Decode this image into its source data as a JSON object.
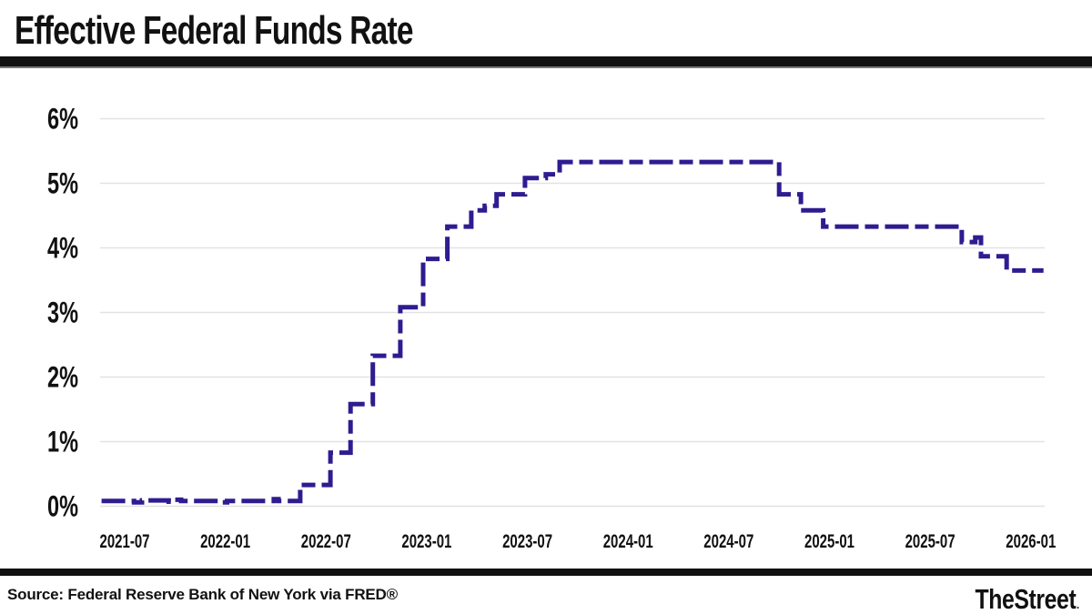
{
  "header": {
    "title": "Effective Federal Funds Rate"
  },
  "footer": {
    "source": "Source: Federal Reserve Bank of New York via FRED®",
    "brand": "TheStreet",
    "brand_suffix": "."
  },
  "colors": {
    "line": "#2e1c90",
    "grid": "#e2e2e2",
    "divider_bar": "#111111",
    "text": "#111111"
  },
  "chart_data": {
    "type": "line",
    "title": "Effective Federal Funds Rate",
    "xlabel": "",
    "ylabel": "",
    "step": true,
    "line_style": "dashed",
    "legend": "none",
    "grid": "horizontal",
    "ylim": [
      0,
      6
    ],
    "y_ticks": [
      "0%",
      "1%",
      "2%",
      "3%",
      "4%",
      "5%",
      "6%"
    ],
    "x_ticks": [
      "2021-07",
      "2022-01",
      "2022-07",
      "2023-01",
      "2023-07",
      "2024-01",
      "2024-07",
      "2025-01",
      "2025-07",
      "2026-01"
    ],
    "series": [
      {
        "name": "Effective Federal Funds Rate (%)",
        "points": [
          [
            "2021-05-20",
            0.08
          ],
          [
            "2021-07-18",
            0.06
          ],
          [
            "2021-08-02",
            0.09
          ],
          [
            "2021-09-20",
            0.07
          ],
          [
            "2021-10-01",
            0.1
          ],
          [
            "2021-10-12",
            0.08
          ],
          [
            "2021-12-24",
            0.06
          ],
          [
            "2022-01-04",
            0.08
          ],
          [
            "2022-03-28",
            0.11
          ],
          [
            "2022-04-06",
            0.08
          ],
          [
            "2022-05-15",
            0.33
          ],
          [
            "2022-07-09",
            0.83
          ],
          [
            "2022-08-15",
            1.58
          ],
          [
            "2022-09-25",
            2.33
          ],
          [
            "2022-11-14",
            3.08
          ],
          [
            "2022-12-25",
            3.83
          ],
          [
            "2023-02-08",
            4.33
          ],
          [
            "2023-03-21",
            4.58
          ],
          [
            "2023-04-15",
            4.65
          ],
          [
            "2023-05-06",
            4.83
          ],
          [
            "2023-06-27",
            5.08
          ],
          [
            "2023-08-04",
            5.14
          ],
          [
            "2023-08-29",
            5.33
          ],
          [
            "2024-10-01",
            4.83
          ],
          [
            "2024-11-10",
            4.58
          ],
          [
            "2024-12-20",
            4.33
          ],
          [
            "2025-08-28",
            4.09
          ],
          [
            "2025-09-22",
            4.16
          ],
          [
            "2025-10-02",
            3.87
          ],
          [
            "2025-11-18",
            3.65
          ],
          [
            "2026-01-24",
            3.65
          ]
        ]
      }
    ]
  }
}
